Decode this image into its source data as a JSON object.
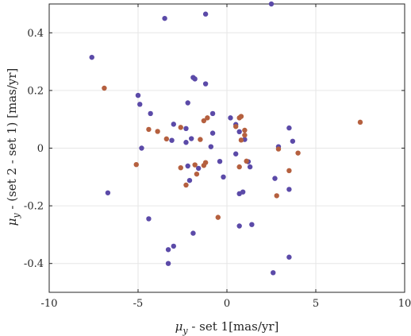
{
  "chart_data": {
    "type": "scatter",
    "xlabel_main": "μ",
    "xlabel_sub": "y",
    "xlabel_rest": " - set 1[mas/yr]",
    "ylabel_main": "μ",
    "ylabel_sub": "y",
    "ylabel_rest": " - (set 2 - set 1) [mas/yr]",
    "xlim": [
      -10,
      10
    ],
    "ylim": [
      -0.5,
      0.5
    ],
    "xticks": [
      -10,
      -5,
      0,
      5,
      10
    ],
    "yticks": [
      -0.4,
      -0.2,
      0,
      0.2,
      0.4
    ],
    "xtick_labels": [
      "-10",
      "-5",
      "0",
      "5",
      "10"
    ],
    "ytick_labels": [
      "-0.4",
      "-0.2",
      "0",
      "0.2",
      "0.4"
    ],
    "grid": true,
    "colors": {
      "series_a": "#5b4aa8",
      "series_b": "#b5603f",
      "grid": "#e6e6e6",
      "axis": "#262626"
    },
    "series": [
      {
        "color_key": "series_a",
        "points": [
          [
            2.5,
            0.5
          ],
          [
            -3.5,
            0.45
          ],
          [
            -1.2,
            0.465
          ],
          [
            -7.6,
            0.315
          ],
          [
            -1.9,
            0.245
          ],
          [
            -1.8,
            0.24
          ],
          [
            -1.2,
            0.223
          ],
          [
            -5.0,
            0.183
          ],
          [
            -4.9,
            0.152
          ],
          [
            -2.2,
            0.157
          ],
          [
            -4.3,
            0.12
          ],
          [
            -0.8,
            0.12
          ],
          [
            0.2,
            0.105
          ],
          [
            -3.0,
            0.083
          ],
          [
            0.5,
            0.082
          ],
          [
            -2.3,
            0.068
          ],
          [
            0.7,
            0.057
          ],
          [
            -0.8,
            0.052
          ],
          [
            3.5,
            0.07
          ],
          [
            1.0,
            0.03
          ],
          [
            -3.1,
            0.027
          ],
          [
            -2.0,
            0.033
          ],
          [
            -2.3,
            0.02
          ],
          [
            3.7,
            0.024
          ],
          [
            -4.8,
            0.0
          ],
          [
            -0.9,
            0.005
          ],
          [
            2.9,
            0.005
          ],
          [
            0.5,
            -0.02
          ],
          [
            -0.4,
            -0.046
          ],
          [
            1.2,
            -0.047
          ],
          [
            -2.2,
            -0.062
          ],
          [
            1.3,
            -0.065
          ],
          [
            -1.6,
            -0.07
          ],
          [
            -0.2,
            -0.1
          ],
          [
            2.7,
            -0.105
          ],
          [
            -2.1,
            -0.112
          ],
          [
            3.5,
            -0.143
          ],
          [
            -6.7,
            -0.155
          ],
          [
            0.9,
            -0.152
          ],
          [
            0.7,
            -0.158
          ],
          [
            -4.4,
            -0.245
          ],
          [
            1.4,
            -0.265
          ],
          [
            0.7,
            -0.27
          ],
          [
            -1.9,
            -0.295
          ],
          [
            -3.0,
            -0.34
          ],
          [
            -3.3,
            -0.352
          ],
          [
            3.5,
            -0.378
          ],
          [
            -3.3,
            -0.4
          ],
          [
            2.6,
            -0.432
          ]
        ]
      },
      {
        "color_key": "series_b",
        "points": [
          [
            -6.9,
            0.208
          ],
          [
            7.5,
            0.09
          ],
          [
            -1.1,
            0.105
          ],
          [
            -1.3,
            0.095
          ],
          [
            0.8,
            0.11
          ],
          [
            0.7,
            0.105
          ],
          [
            -4.4,
            0.065
          ],
          [
            -2.6,
            0.072
          ],
          [
            1.0,
            0.062
          ],
          [
            -3.9,
            0.058
          ],
          [
            0.5,
            0.075
          ],
          [
            1.0,
            0.045
          ],
          [
            -3.4,
            0.032
          ],
          [
            -1.5,
            0.03
          ],
          [
            0.8,
            0.028
          ],
          [
            2.9,
            -0.003
          ],
          [
            4.0,
            -0.017
          ],
          [
            -5.1,
            -0.057
          ],
          [
            1.1,
            -0.045
          ],
          [
            0.7,
            -0.065
          ],
          [
            -1.2,
            -0.05
          ],
          [
            -1.3,
            -0.06
          ],
          [
            -2.6,
            -0.068
          ],
          [
            -1.8,
            -0.058
          ],
          [
            -1.7,
            -0.09
          ],
          [
            3.5,
            -0.078
          ],
          [
            -2.3,
            -0.128
          ],
          [
            2.8,
            -0.165
          ],
          [
            -0.5,
            -0.24
          ]
        ]
      }
    ]
  }
}
